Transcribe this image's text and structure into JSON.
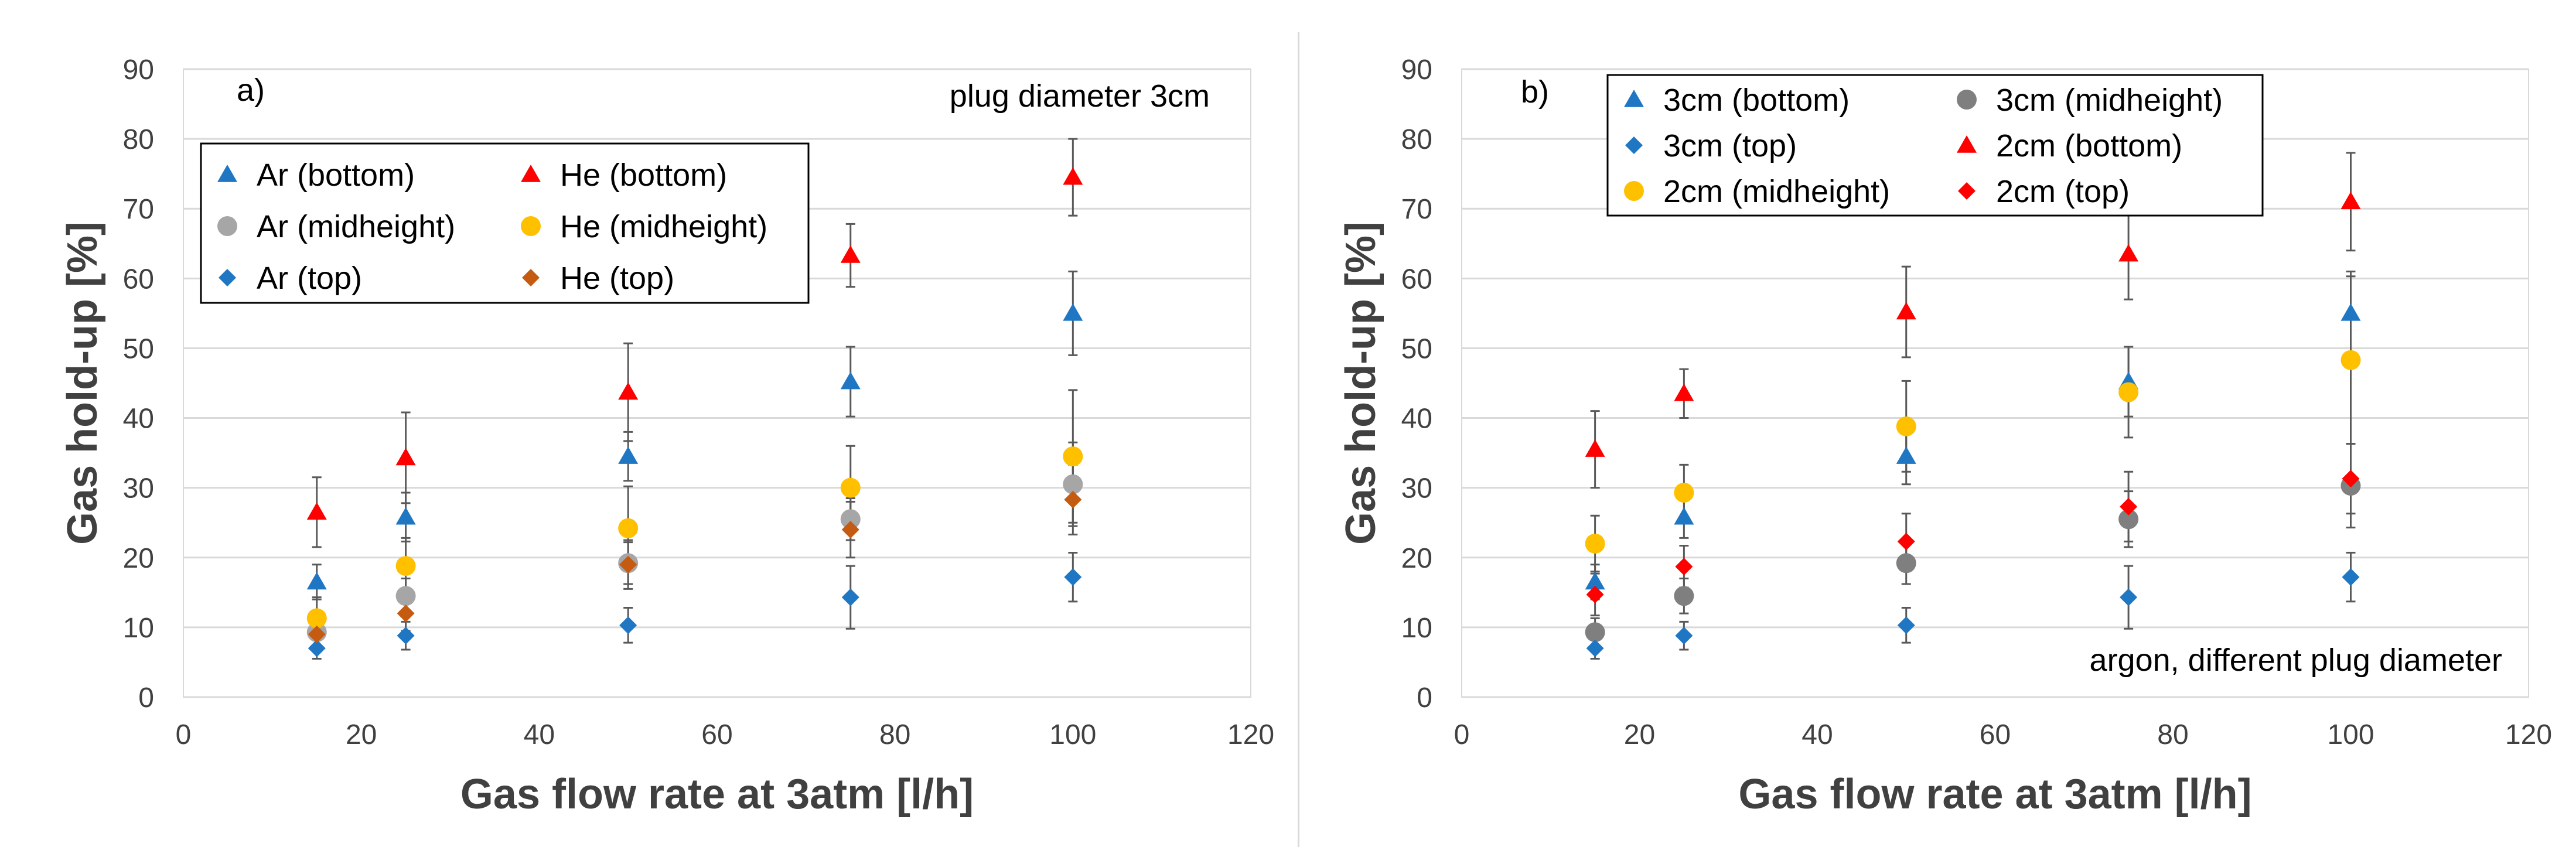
{
  "colors": {
    "blue": "#1f77c4",
    "red": "#ff0000",
    "gray": "#a6a6a6",
    "dark_gray": "#7f7f7f",
    "yellow": "#ffc000",
    "rust": "#c55a11",
    "error_bar": "#595959",
    "grid": "#d9d9d9"
  },
  "chart_data": [
    {
      "type": "scatter",
      "panel_label": "a)",
      "annotation": "plug diameter 3cm",
      "xlabel": "Gas flow rate at 3atm [l/h]",
      "ylabel": "Gas hold-up [%]",
      "xlim": [
        0,
        120
      ],
      "ylim": [
        0,
        90
      ],
      "xticks": [
        0,
        20,
        40,
        60,
        80,
        100,
        120
      ],
      "yticks": [
        0,
        10,
        20,
        30,
        40,
        50,
        60,
        70,
        80,
        90
      ],
      "grid": "horizontal",
      "legend_placement": "upper-left",
      "series": [
        {
          "name": "Ar (bottom)",
          "marker": "triangle",
          "color": "#1f77c4",
          "x": [
            15,
            25,
            50,
            75,
            100
          ],
          "y": [
            16.5,
            25.8,
            34.5,
            45.2,
            55
          ],
          "err": [
            2.5,
            3.5,
            3.5,
            5,
            6
          ]
        },
        {
          "name": "He (bottom)",
          "marker": "triangle",
          "color": "#ff0000",
          "x": [
            15,
            25,
            50,
            75,
            100
          ],
          "y": [
            26.5,
            34.3,
            43.7,
            63.3,
            74.5
          ],
          "err": [
            5,
            6.5,
            7,
            4.5,
            5.5
          ]
        },
        {
          "name": "Ar (midheight)",
          "marker": "circle",
          "color": "#a6a6a6",
          "x": [
            15,
            25,
            50,
            75,
            100
          ],
          "y": [
            9.3,
            14.5,
            19.2,
            25.5,
            30.5
          ],
          "err": [
            2,
            2.5,
            3,
            3,
            6
          ]
        },
        {
          "name": "He (midheight)",
          "marker": "circle",
          "color": "#ffc000",
          "x": [
            15,
            25,
            50,
            75,
            100
          ],
          "y": [
            11.3,
            18.8,
            24.2,
            30,
            34.5
          ],
          "err": [
            3,
            4,
            6,
            6,
            9.5
          ]
        },
        {
          "name": "Ar (top)",
          "marker": "diamond",
          "color": "#1f77c4",
          "x": [
            15,
            25,
            50,
            75,
            100
          ],
          "y": [
            7,
            8.8,
            10.3,
            14.3,
            17.2
          ],
          "err": [
            1.5,
            2,
            2.5,
            4.5,
            3.5
          ]
        },
        {
          "name": "He (top)",
          "marker": "diamond",
          "color": "#c55a11",
          "x": [
            15,
            25,
            50,
            75,
            100
          ],
          "y": [
            9,
            12,
            19,
            24,
            28.3
          ],
          "err": [
            2,
            2.5,
            3.5,
            4,
            5
          ]
        }
      ]
    },
    {
      "type": "scatter",
      "panel_label": "b)",
      "annotation": "argon, different plug diameter",
      "xlabel": "Gas flow rate at 3atm [l/h]",
      "ylabel": "Gas hold-up [%]",
      "xlim": [
        0,
        120
      ],
      "ylim": [
        0,
        90
      ],
      "xticks": [
        0,
        20,
        40,
        60,
        80,
        100,
        120
      ],
      "yticks": [
        0,
        10,
        20,
        30,
        40,
        50,
        60,
        70,
        80,
        90
      ],
      "grid": "horizontal",
      "legend_placement": "upper-left",
      "series": [
        {
          "name": "3cm (bottom)",
          "marker": "triangle",
          "color": "#1f77c4",
          "x": [
            15,
            25,
            50,
            75,
            100
          ],
          "y": [
            16.5,
            25.8,
            34.5,
            45.2,
            55
          ],
          "err": [
            2.5,
            3,
            4,
            5,
            6
          ]
        },
        {
          "name": "3cm (midheight)",
          "marker": "circle",
          "color": "#7f7f7f",
          "x": [
            15,
            25,
            50,
            75,
            100
          ],
          "y": [
            9.3,
            14.5,
            19.2,
            25.5,
            30.3
          ],
          "err": [
            2,
            2.5,
            3,
            4,
            6
          ]
        },
        {
          "name": "3cm (top)",
          "marker": "diamond",
          "color": "#1f77c4",
          "x": [
            15,
            25,
            50,
            75,
            100
          ],
          "y": [
            7,
            8.8,
            10.3,
            14.3,
            17.2
          ],
          "err": [
            1.5,
            2,
            2.5,
            4.5,
            3.5
          ]
        },
        {
          "name": "2cm (bottom)",
          "marker": "triangle",
          "color": "#ff0000",
          "x": [
            15,
            25,
            50,
            75,
            100
          ],
          "y": [
            35.5,
            43.5,
            55.2,
            63.5,
            71
          ],
          "err": [
            5.5,
            3.5,
            6.5,
            6.5,
            7
          ]
        },
        {
          "name": "2cm (midheight)",
          "marker": "circle",
          "color": "#ffc000",
          "x": [
            15,
            25,
            50,
            75,
            100
          ],
          "y": [
            22,
            29.3,
            38.8,
            43.7,
            48.3
          ],
          "err": [
            4,
            4,
            6.5,
            6.5,
            12
          ]
        },
        {
          "name": "2cm (top)",
          "marker": "diamond",
          "color": "#ff0000",
          "x": [
            15,
            25,
            50,
            75,
            100
          ],
          "y": [
            14.7,
            18.7,
            22.3,
            27.3,
            31.3
          ],
          "err": [
            3,
            3,
            4,
            5,
            5
          ]
        }
      ]
    }
  ]
}
